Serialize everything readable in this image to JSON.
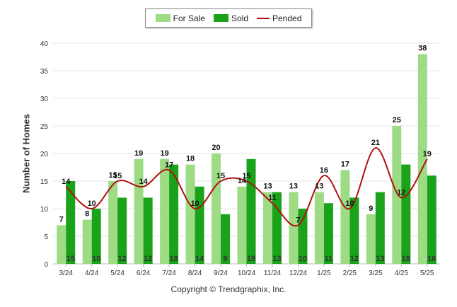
{
  "legend": {
    "for_sale": "For Sale",
    "sold": "Sold",
    "pended": "Pended"
  },
  "colors": {
    "for_sale": "#9edb85",
    "sold": "#1aa31a",
    "pended": "#b01010",
    "grid": "#e6e6e6"
  },
  "credit": "Copyright © Trendgraphix, Inc.",
  "chart_data": {
    "type": "bar",
    "categories": [
      "3/24",
      "4/24",
      "5/24",
      "6/24",
      "7/24",
      "8/24",
      "9/24",
      "10/24",
      "11/24",
      "12/24",
      "1/25",
      "2/25",
      "3/25",
      "4/25",
      "5/25"
    ],
    "series": [
      {
        "name": "For Sale",
        "type": "bar",
        "values": [
          7,
          8,
          15,
          19,
          19,
          18,
          20,
          14,
          13,
          13,
          13,
          17,
          9,
          25,
          38
        ]
      },
      {
        "name": "Sold",
        "type": "bar",
        "values": [
          15,
          10,
          12,
          12,
          18,
          14,
          9,
          19,
          13,
          10,
          11,
          12,
          13,
          18,
          16
        ]
      },
      {
        "name": "Pended",
        "type": "line",
        "smooth": true,
        "values": [
          14,
          10,
          15,
          14,
          17,
          10,
          15,
          15,
          11,
          7,
          16,
          10,
          21,
          12,
          19
        ]
      }
    ],
    "ylabel": "Number of Homes",
    "ylim": [
      0,
      40
    ],
    "yticks": [
      0,
      5,
      10,
      15,
      20,
      25,
      30,
      35,
      40
    ],
    "grid": true,
    "legend_position": "top-center"
  }
}
